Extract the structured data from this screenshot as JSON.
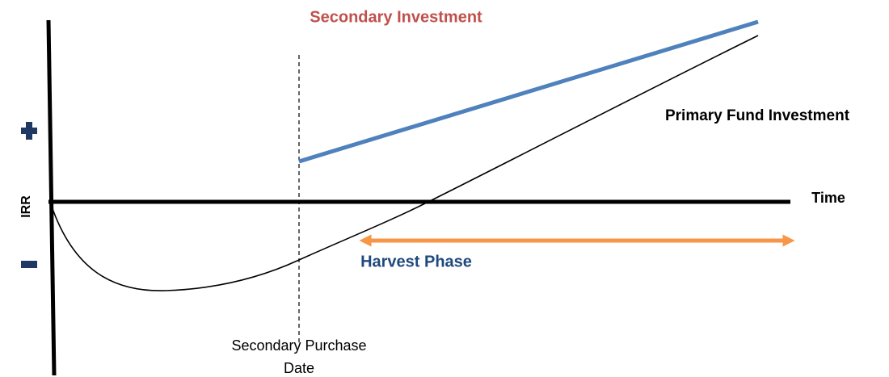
{
  "diagram": {
    "secondary_investment": "Secondary Investment",
    "primary_investment": "Primary Fund Investment",
    "x_axis_label": "Time",
    "y_axis_label": "IRR",
    "harvest_phase": "Harvest Phase",
    "purchase_date": [
      "Secondary Purchase",
      "Date"
    ]
  }
}
